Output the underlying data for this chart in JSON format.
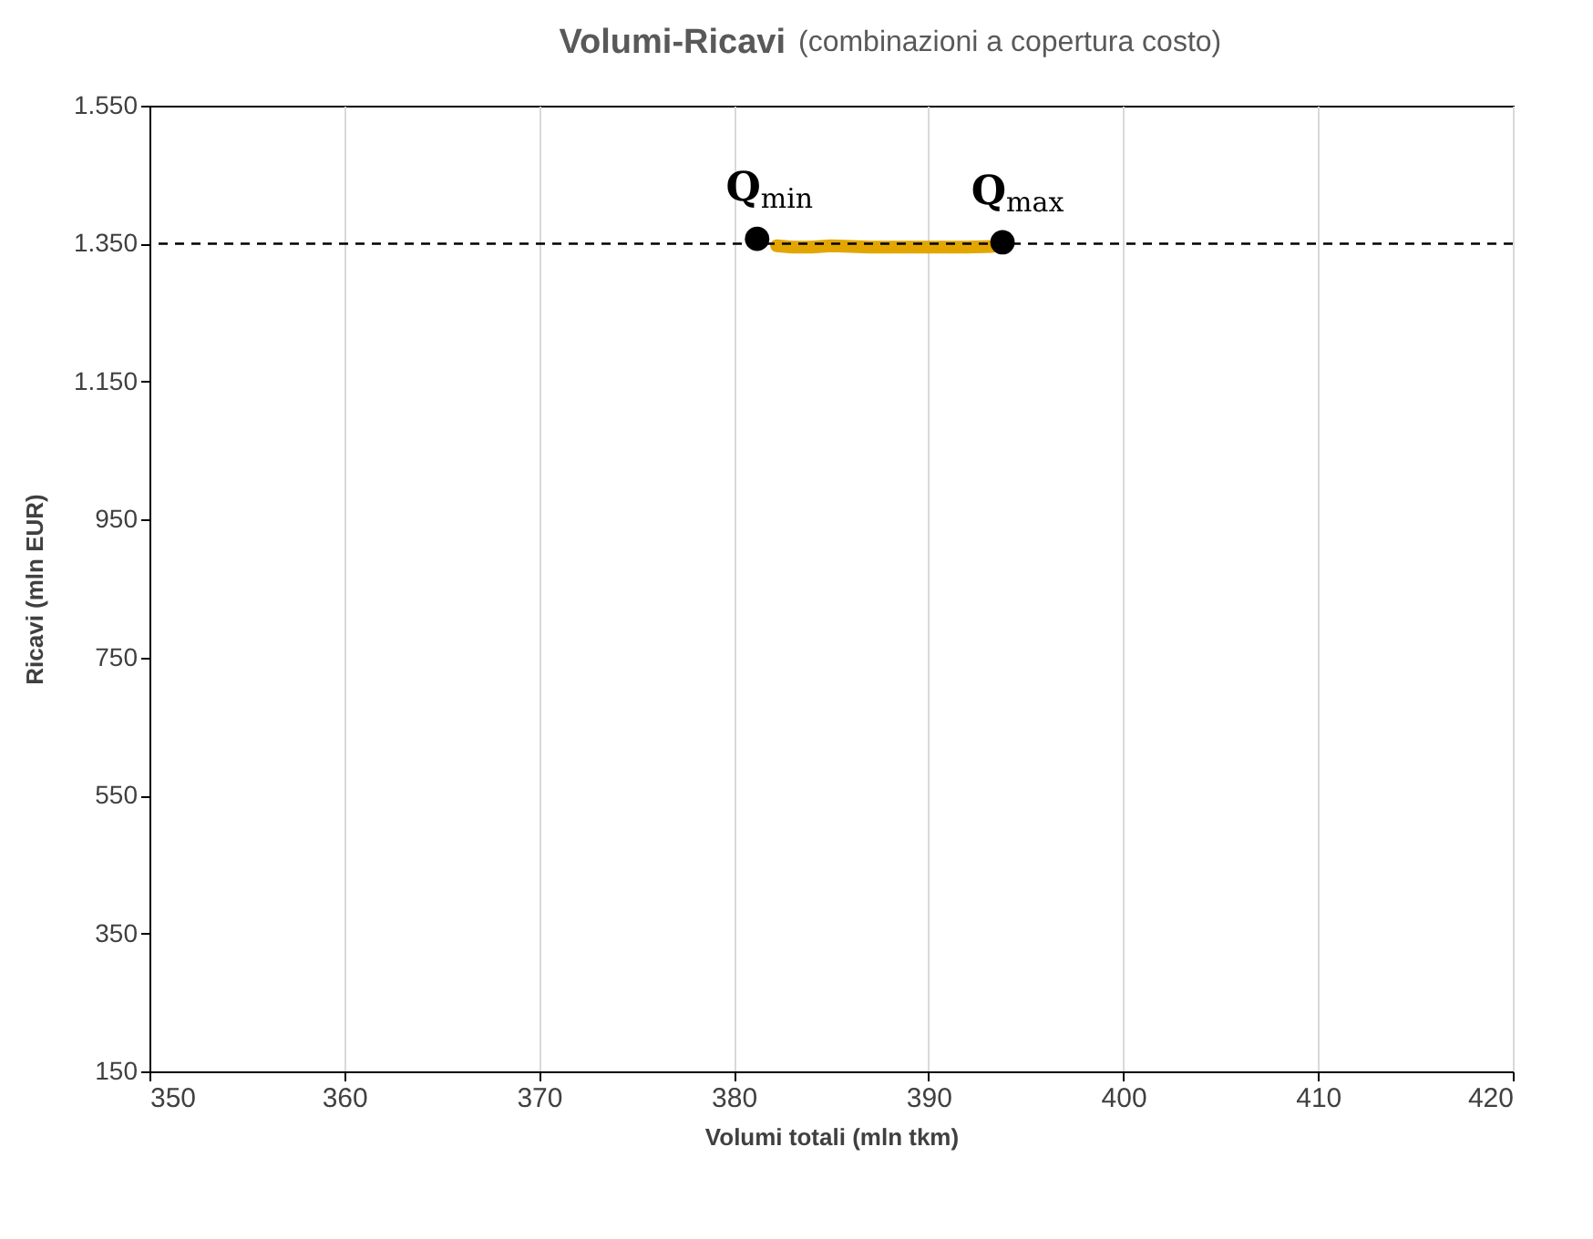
{
  "chart_data": {
    "type": "scatter",
    "title": "Volumi-Ricavi",
    "subtitle": "(combinazioni a copertura costo)",
    "xlabel": "Volumi totali (mln tkm)",
    "ylabel": "Ricavi (mln EUR)",
    "xlim": [
      350,
      420
    ],
    "xticks": [
      350,
      360,
      370,
      380,
      390,
      400,
      410,
      420
    ],
    "ylim": [
      150,
      1550
    ],
    "yticks": [
      {
        "value": 150,
        "label": "150"
      },
      {
        "value": 350,
        "label": "350"
      },
      {
        "value": 550,
        "label": "550"
      },
      {
        "value": 750,
        "label": "750"
      },
      {
        "value": 950,
        "label": "950"
      },
      {
        "value": 1150,
        "label": "1.150"
      },
      {
        "value": 1350,
        "label": "1.350"
      },
      {
        "value": 1550,
        "label": "1.550"
      }
    ],
    "grid": "x",
    "series": [
      {
        "type": "line",
        "color": "#e3a600",
        "x": [
          382.2,
          383,
          384,
          385,
          386,
          387,
          388,
          389,
          390,
          391,
          392,
          393.3
        ],
        "values": [
          1347,
          1345,
          1345,
          1347,
          1346,
          1345,
          1345,
          1345,
          1345,
          1345,
          1345,
          1346
        ]
      },
      {
        "color": "#000000",
        "marker": "circle",
        "x": [
          381.2,
          393.8
        ],
        "values": [
          1357,
          1352
        ]
      }
    ],
    "ref_lines": [
      {
        "axis": "y",
        "value": 1350,
        "line_style": "dashed",
        "color": "#000000"
      }
    ],
    "annotations": [
      {
        "text": "Q$_{min}$",
        "x": 381.2,
        "y": 1357
      },
      {
        "text": "Q$_{max}$",
        "x": 393.8,
        "y": 1352
      }
    ]
  }
}
